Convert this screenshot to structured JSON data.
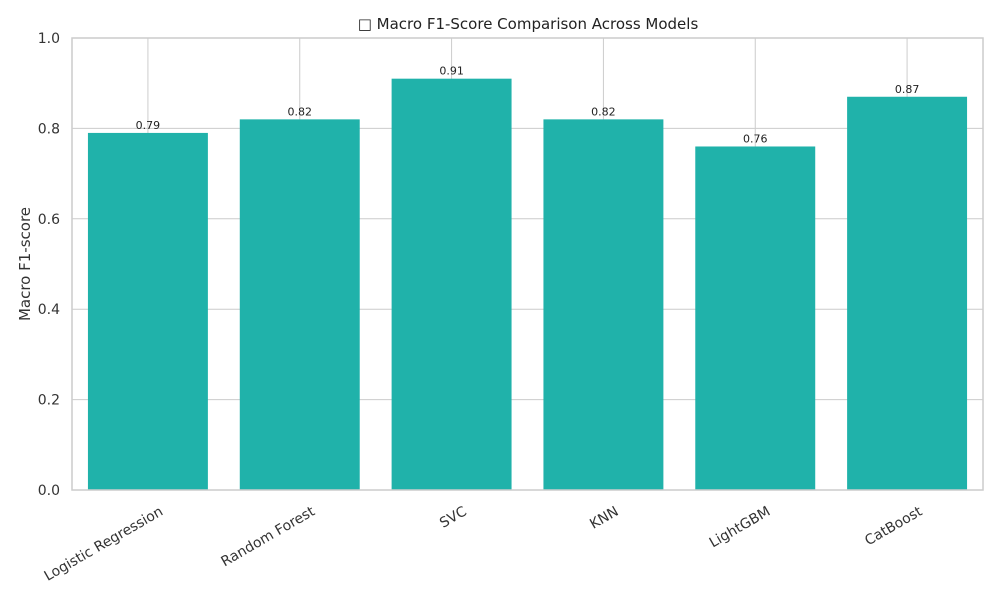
{
  "chart_data": {
    "type": "bar",
    "title": "□ Macro F1-Score Comparison Across Models",
    "xlabel": "",
    "ylabel": "Macro F1-score",
    "categories": [
      "Logistic Regression",
      "Random Forest",
      "SVC",
      "KNN",
      "LightGBM",
      "CatBoost"
    ],
    "values": [
      0.79,
      0.82,
      0.91,
      0.82,
      0.76,
      0.87
    ],
    "value_labels": [
      "0.79",
      "0.82",
      "0.91",
      "0.82",
      "0.76",
      "0.87"
    ],
    "ylim": [
      0,
      1.0
    ],
    "yticks": [
      "0.0",
      "0.2",
      "0.4",
      "0.6",
      "0.8",
      "1.0"
    ],
    "ytick_values": [
      0,
      0.2,
      0.4,
      0.6,
      0.8,
      1.0
    ],
    "bar_color": "#20b2aa",
    "grid": true,
    "legend": "none"
  }
}
